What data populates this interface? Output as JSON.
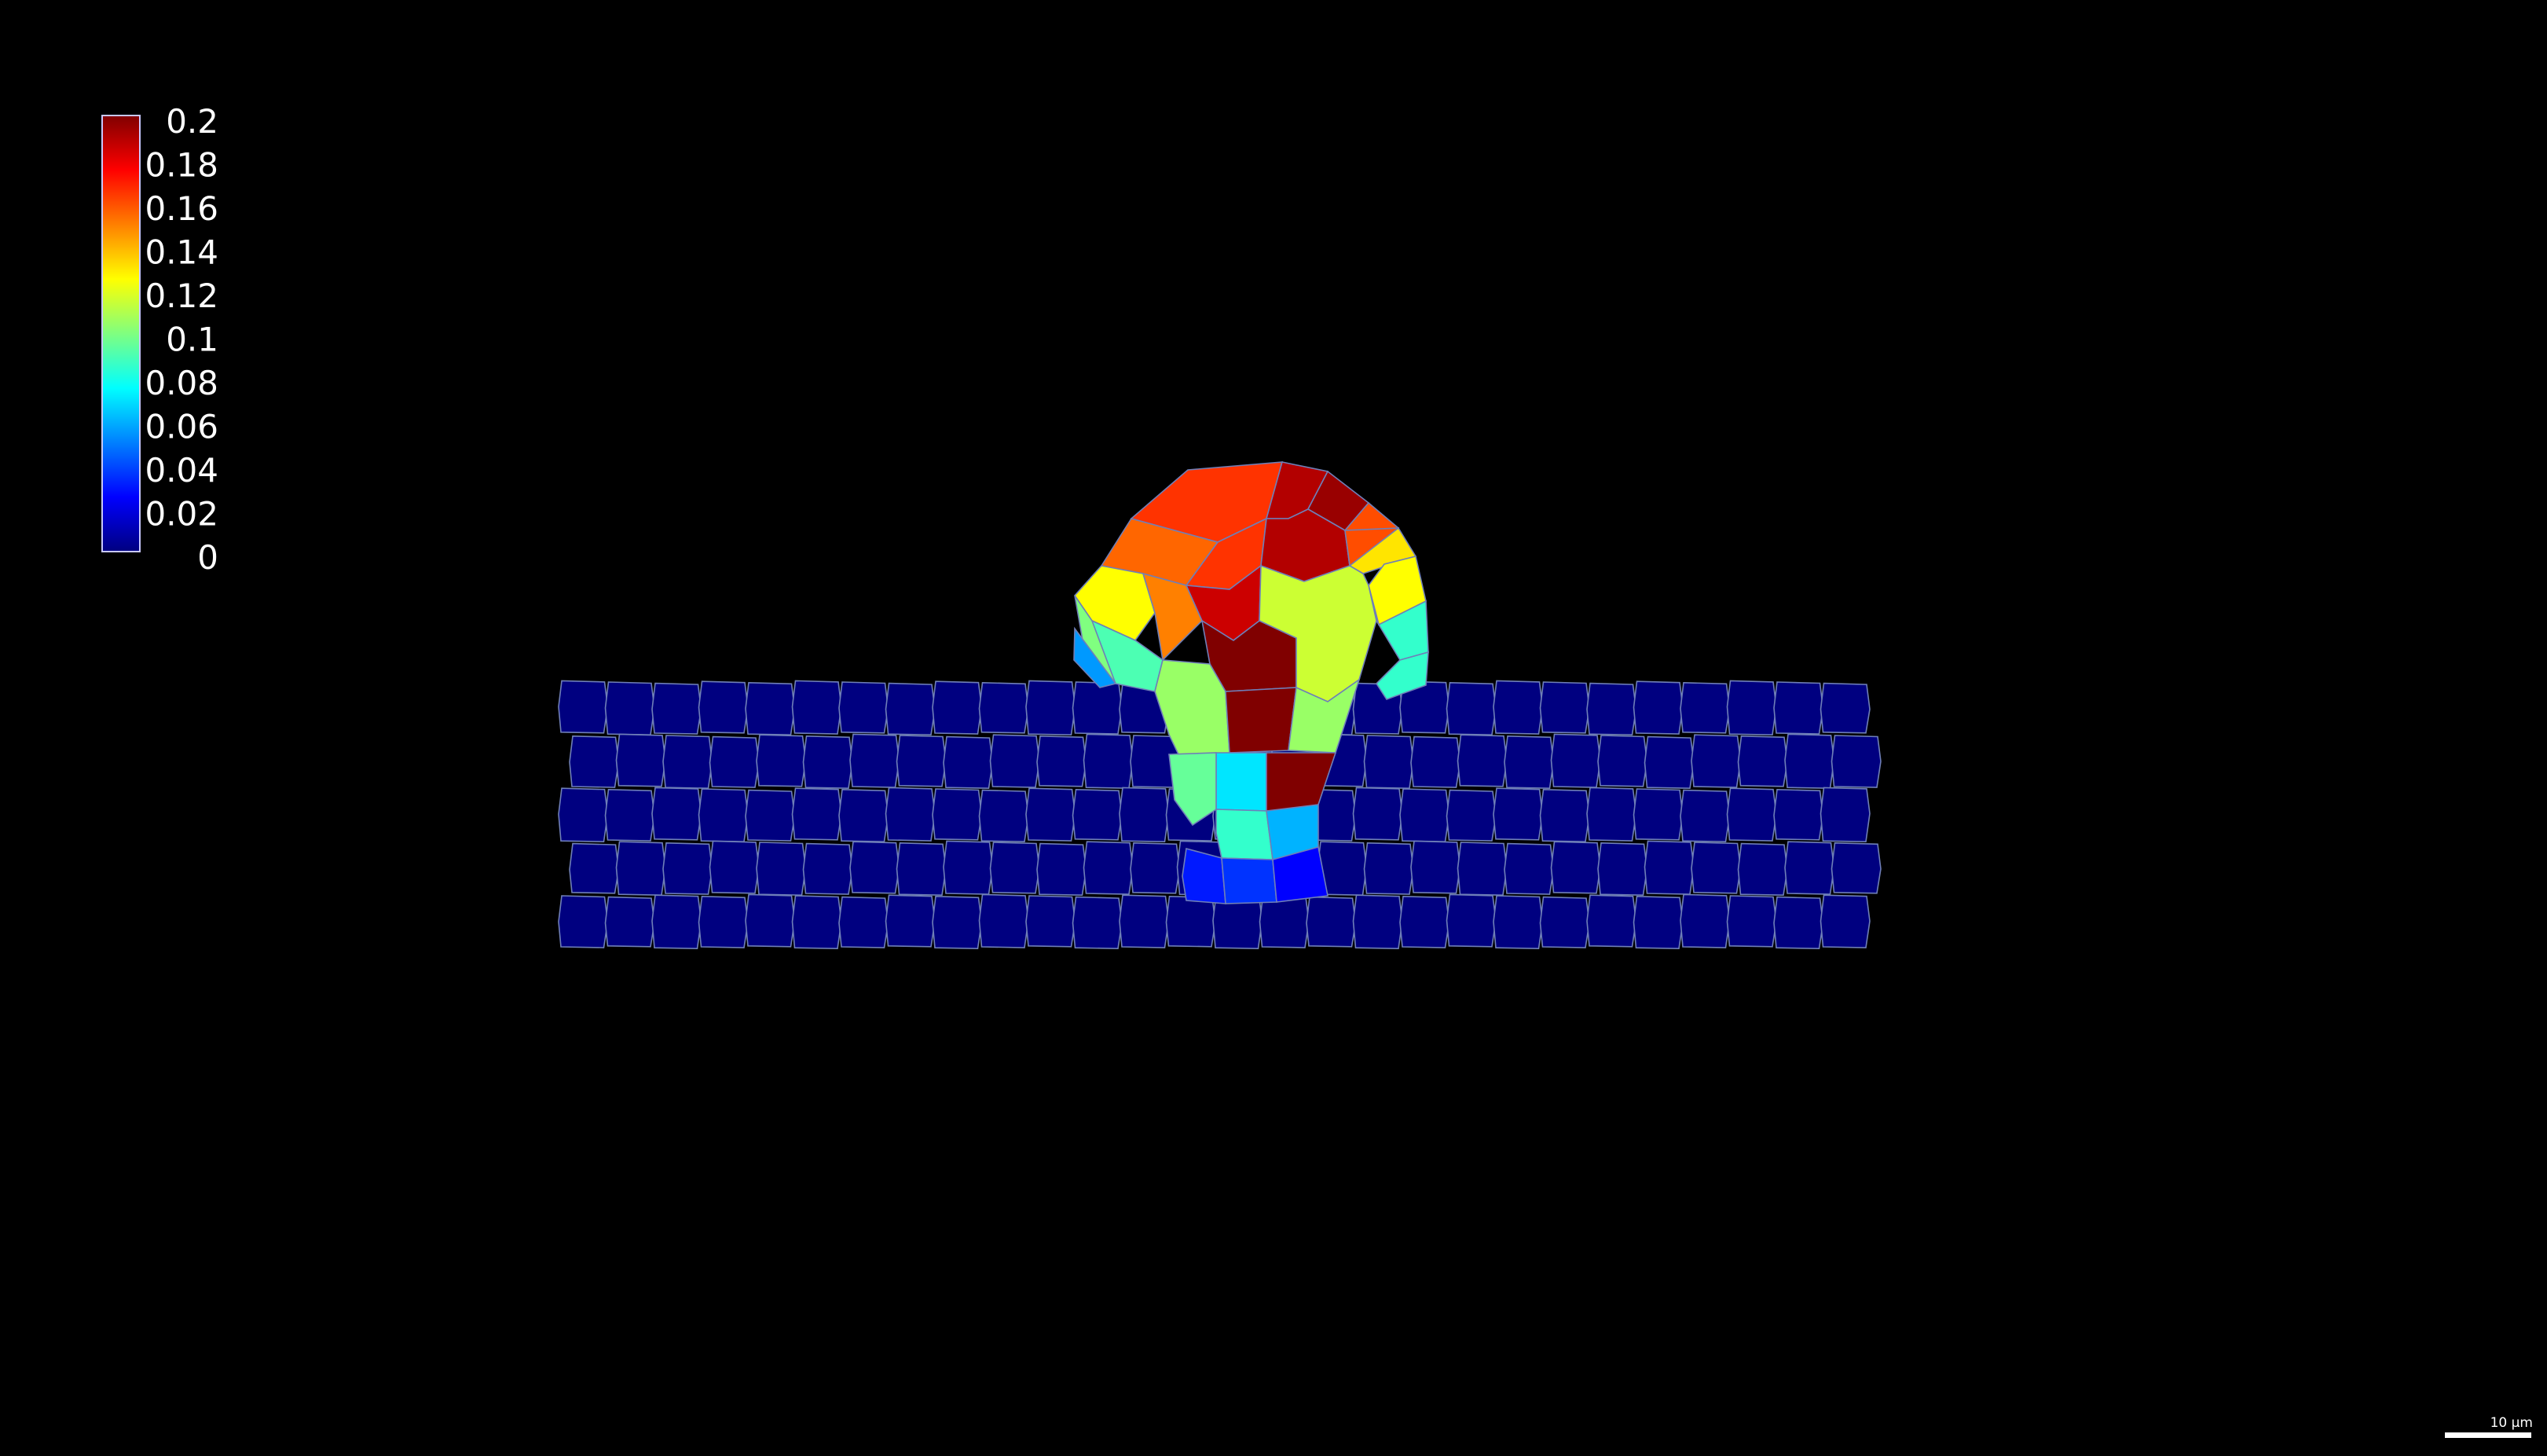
{
  "colorbar": {
    "tick_labels": [
      "0.2",
      "0.18",
      "0.16",
      "0.14",
      "0.12",
      "0.1",
      "0.08",
      "0.06",
      "0.04",
      "0.02",
      "0"
    ],
    "min": 0,
    "max": 0.2,
    "colormap": "jet",
    "stops": [
      "#000080",
      "#0000ff",
      "#00ffff",
      "#ffff00",
      "#ff0000",
      "#800000"
    ],
    "border_color": "#c8c8ff"
  },
  "tissue": {
    "background_value": 0.0,
    "mesh_color": "#6f7fb8",
    "dome_cell_values": [
      0.165,
      0.19,
      0.195,
      0.16,
      0.155,
      0.165,
      0.19,
      0.16,
      0.13,
      0.125,
      0.15,
      0.185,
      0.125,
      0.1,
      0.09,
      0.055,
      0.085,
      0.2,
      0.115,
      0.085,
      0.105,
      0.2,
      0.105,
      0.07,
      0.2,
      0.095,
      0.085,
      0.06,
      0.03,
      0.035,
      0.025
    ]
  },
  "scale_bar": {
    "label": "10 µm"
  }
}
